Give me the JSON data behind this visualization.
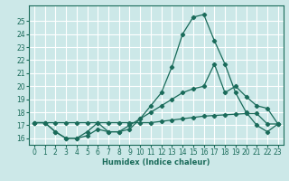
{
  "xlabel": "Humidex (Indice chaleur)",
  "bg_color": "#cce8e8",
  "grid_color": "#b0d4d4",
  "line_color": "#1a6b5a",
  "ylim": [
    15.5,
    26.2
  ],
  "yticks": [
    16,
    17,
    18,
    19,
    20,
    21,
    22,
    23,
    24,
    25
  ],
  "xlim": [
    -0.5,
    23.5
  ],
  "xticks": [
    0,
    1,
    2,
    3,
    4,
    5,
    6,
    7,
    8,
    9,
    10,
    11,
    12,
    13,
    14,
    15,
    16,
    17,
    18,
    19,
    20,
    21,
    22,
    23
  ],
  "series1_x": [
    0,
    1,
    2,
    3,
    4,
    5,
    6,
    7,
    8,
    9,
    10,
    11,
    12,
    13,
    14,
    15,
    16,
    17,
    18,
    19,
    20,
    21,
    22,
    23
  ],
  "series1_y": [
    17.2,
    17.2,
    17.2,
    17.2,
    17.2,
    17.2,
    17.2,
    17.2,
    17.2,
    17.2,
    17.2,
    17.2,
    17.3,
    17.4,
    17.5,
    17.6,
    17.7,
    17.75,
    17.8,
    17.85,
    17.9,
    17.9,
    17.1,
    17.1
  ],
  "series2_x": [
    0,
    1,
    2,
    3,
    4,
    5,
    6,
    7,
    8,
    9,
    10,
    11,
    12,
    13,
    14,
    15,
    16,
    17,
    18,
    19,
    20,
    21,
    22,
    23
  ],
  "series2_y": [
    17.2,
    17.2,
    16.5,
    16.0,
    16.0,
    16.2,
    16.7,
    16.5,
    16.5,
    17.0,
    17.5,
    18.0,
    18.5,
    19.0,
    19.5,
    19.8,
    20.0,
    21.7,
    19.5,
    20.0,
    19.2,
    18.5,
    18.3,
    17.1
  ],
  "series3_x": [
    0,
    1,
    2,
    3,
    4,
    5,
    6,
    7,
    8,
    9,
    10,
    11,
    12,
    13,
    14,
    15,
    16,
    17,
    18,
    19,
    20,
    21,
    22,
    23
  ],
  "series3_y": [
    17.2,
    17.2,
    16.5,
    16.0,
    16.0,
    16.5,
    17.2,
    16.5,
    16.5,
    16.7,
    17.5,
    18.5,
    19.5,
    21.5,
    24.0,
    25.3,
    25.5,
    23.5,
    21.7,
    19.5,
    18.0,
    17.0,
    16.5,
    17.1
  ]
}
